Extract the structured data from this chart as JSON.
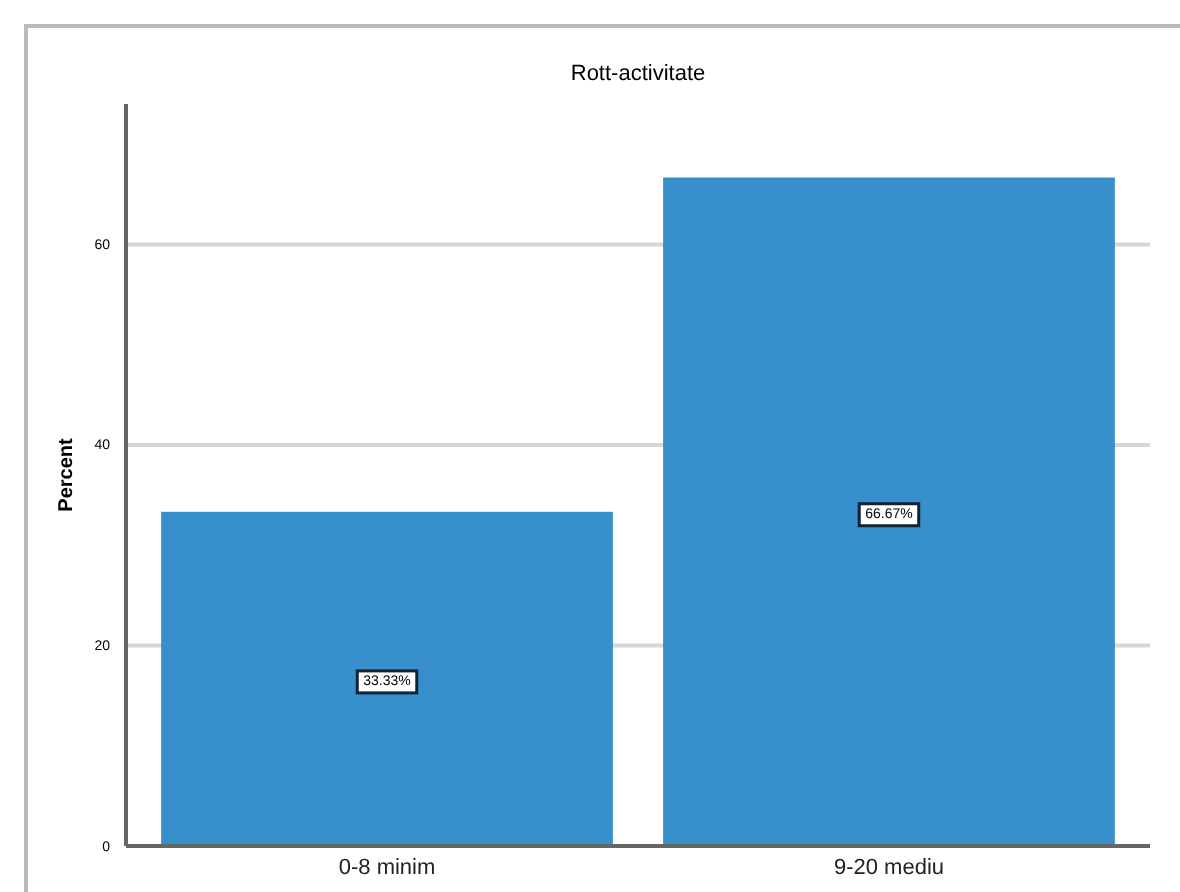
{
  "chart_data": {
    "type": "bar",
    "title": "Rott-activitate",
    "ylabel": "Percent",
    "categories": [
      "0-8 minim",
      "9-20 mediu"
    ],
    "values": [
      33.33,
      66.67
    ],
    "value_labels": [
      "33.33%",
      "66.67%"
    ],
    "color": "#3790cc",
    "ylim": [
      0,
      74
    ],
    "yticks": [
      0,
      20,
      40,
      60
    ],
    "grid": "y"
  }
}
